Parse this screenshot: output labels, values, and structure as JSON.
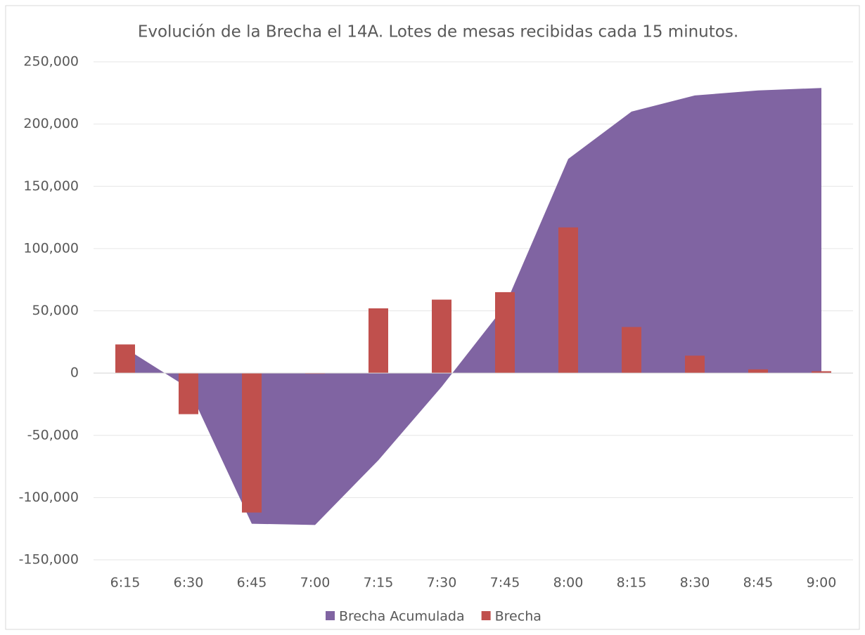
{
  "chart_data": {
    "type": "area_bar",
    "title": "Evolución de la Brecha el 14A. Lotes de mesas recibidas cada 15 minutos.",
    "categories": [
      "6:15",
      "6:30",
      "6:45",
      "7:00",
      "7:15",
      "7:30",
      "7:45",
      "8:00",
      "8:15",
      "8:30",
      "8:45",
      "9:00"
    ],
    "series": [
      {
        "name": "Brecha Acumulada",
        "type": "area",
        "color": "#8064a2",
        "values": [
          20000,
          -12000,
          -121000,
          -122000,
          -70000,
          -11000,
          54000,
          172000,
          210000,
          223000,
          227000,
          229000
        ]
      },
      {
        "name": "Brecha",
        "type": "bar",
        "color": "#c0504d",
        "values": [
          23000,
          -33000,
          -112000,
          -500,
          52000,
          59000,
          65000,
          117000,
          37000,
          14000,
          3000,
          1500
        ]
      }
    ],
    "ylim": [
      -150000,
      250000
    ],
    "yticks": [
      {
        "value": -150000,
        "label": "-150,000"
      },
      {
        "value": -100000,
        "label": "-100,000"
      },
      {
        "value": -50000,
        "label": "-50,000"
      },
      0,
      {
        "value": 50000,
        "label": "50,000"
      },
      {
        "value": 100000,
        "label": "100,000"
      },
      {
        "value": 150000,
        "label": "150,000"
      },
      {
        "value": 200000,
        "label": "200,000"
      },
      {
        "value": 250000,
        "label": "250,000"
      }
    ],
    "grid": true,
    "legend": "bottom"
  }
}
